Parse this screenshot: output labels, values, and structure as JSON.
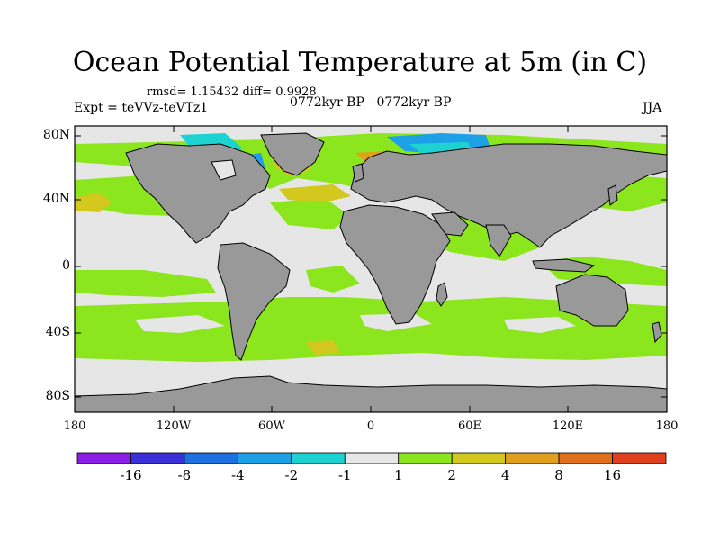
{
  "title": "Ocean Potential Temperature at 5m (in C)",
  "stats": "rmsd= 1.15432 diff= 0.9928",
  "experiment": "Expt = teVVz-teVTz1",
  "period": "0772kyr BP - 0772kyr BP",
  "season": "JJA",
  "lat_labels": [
    "80N",
    "40N",
    "0",
    "40S",
    "80S"
  ],
  "lon_labels": [
    "180",
    "120W",
    "60W",
    "0",
    "60E",
    "120E",
    "180"
  ],
  "colorbar": {
    "labels": [
      "-16",
      "-8",
      "-4",
      "-2",
      "-1",
      "1",
      "2",
      "4",
      "8",
      "16"
    ],
    "colors": [
      "#8a1ee6",
      "#3a2fd9",
      "#1e6fe0",
      "#1ea0e6",
      "#1ed2d2",
      "#e6e6e6",
      "#8ce61e",
      "#d2c81e",
      "#e0a01e",
      "#e0701e",
      "#e0401e"
    ]
  },
  "map_colors": {
    "land": "#999999",
    "ocean_neutral": "#e6e6e6",
    "warm_1_2": "#8ce61e",
    "warm_2_4": "#d2c81e",
    "warm_4_8": "#e0a01e",
    "cold_1_2": "#1ed2d2",
    "cold_2_4": "#1ea0e6"
  }
}
